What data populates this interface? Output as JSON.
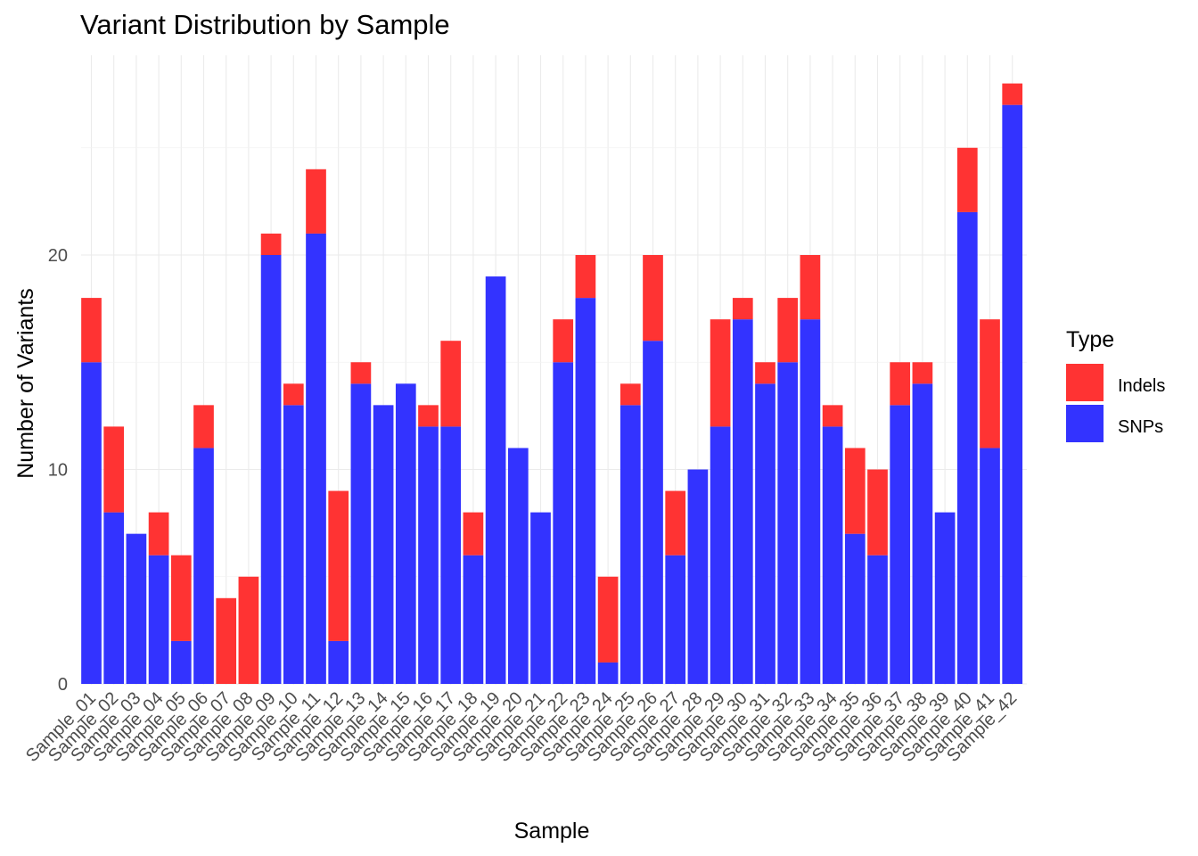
{
  "chart_data": {
    "type": "bar",
    "stacked": true,
    "title": "Variant Distribution by Sample",
    "xlabel": "Sample",
    "ylabel": "Number of Variants",
    "ylim": [
      0,
      28.5
    ],
    "yticks": [
      0,
      10,
      20
    ],
    "grid": true,
    "legend": {
      "title": "Type",
      "placement": "right",
      "entries": [
        {
          "label": "Indels",
          "color": "#ff3333"
        },
        {
          "label": "SNPs",
          "color": "#3333ff"
        }
      ]
    },
    "categories": [
      "Sample_01",
      "Sample_02",
      "Sample_03",
      "Sample_04",
      "Sample_05",
      "Sample_06",
      "Sample_07",
      "Sample_08",
      "Sample_09",
      "Sample_10",
      "Sample_11",
      "Sample_12",
      "Sample_13",
      "Sample_14",
      "Sample_15",
      "Sample_16",
      "Sample_17",
      "Sample_18",
      "Sample_19",
      "Sample_20",
      "Sample_21",
      "Sample_22",
      "Sample_23",
      "Sample_24",
      "Sample_25",
      "Sample_26",
      "Sample_27",
      "Sample_28",
      "Sample_29",
      "Sample_30",
      "Sample_31",
      "Sample_32",
      "Sample_33",
      "Sample_34",
      "Sample_35",
      "Sample_36",
      "Sample_37",
      "Sample_38",
      "Sample_39",
      "Sample_40",
      "Sample_41",
      "Sample_42"
    ],
    "series": [
      {
        "name": "SNPs",
        "color": "#3333ff",
        "values": [
          15,
          8,
          7,
          6,
          2,
          11,
          0,
          0,
          20,
          13,
          21,
          2,
          14,
          13,
          14,
          12,
          12,
          6,
          19,
          11,
          8,
          15,
          18,
          1,
          13,
          16,
          6,
          10,
          12,
          17,
          14,
          15,
          17,
          12,
          7,
          6,
          13,
          14,
          8,
          22,
          11,
          27
        ]
      },
      {
        "name": "Indels",
        "color": "#ff3333",
        "values": [
          3,
          4,
          0,
          2,
          4,
          2,
          4,
          5,
          1,
          1,
          3,
          7,
          1,
          0,
          0,
          1,
          4,
          2,
          0,
          0,
          0,
          2,
          2,
          4,
          1,
          4,
          3,
          0,
          5,
          1,
          1,
          3,
          3,
          1,
          4,
          4,
          2,
          1,
          0,
          3,
          6,
          1
        ]
      }
    ]
  }
}
